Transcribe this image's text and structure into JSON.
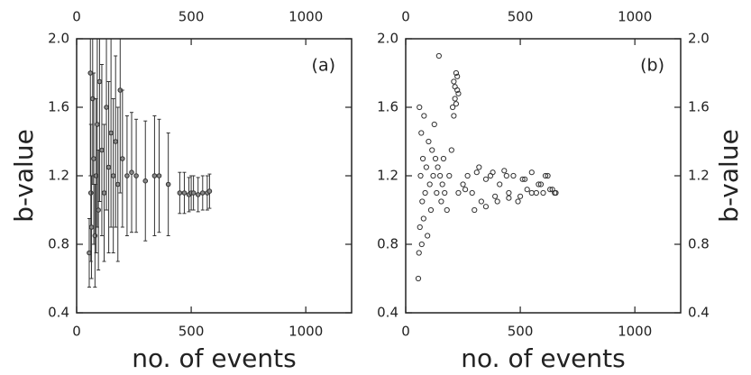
{
  "chart_data": [
    {
      "type": "errorbar",
      "annotation": "(a)",
      "xlabel": "no. of events",
      "ylabel": "b-value",
      "ylabel_side": "left",
      "ytick_label_sides": [
        "left"
      ],
      "xtick_label_sides": [
        "bottom",
        "top"
      ],
      "color": "#333333",
      "xlim": [
        0,
        1200
      ],
      "ylim": [
        0.4,
        2
      ],
      "xticks": [
        0,
        500,
        1000
      ],
      "yticks": [
        0.4,
        0.8,
        1.2,
        1.6,
        {
          "value": 2,
          "label": "2.0"
        }
      ],
      "x": [
        55,
        60,
        62,
        65,
        70,
        75,
        80,
        85,
        90,
        95,
        100,
        110,
        120,
        130,
        140,
        150,
        160,
        170,
        180,
        190,
        200,
        220,
        240,
        260,
        300,
        340,
        360,
        400,
        450,
        470,
        490,
        500,
        510,
        530,
        550,
        570,
        580
      ],
      "values": [
        0.75,
        1.8,
        1.1,
        0.9,
        1.65,
        1.3,
        0.85,
        1.2,
        1.5,
        1.0,
        1.75,
        1.35,
        1.1,
        1.6,
        1.25,
        1.45,
        1.2,
        1.4,
        1.15,
        1.7,
        1.3,
        1.2,
        1.22,
        1.2,
        1.17,
        1.2,
        1.2,
        1.15,
        1.1,
        1.1,
        1.09,
        1.1,
        1.1,
        1.09,
        1.1,
        1.1,
        1.11
      ],
      "errors": [
        0.2,
        0.6,
        0.4,
        0.3,
        0.5,
        0.5,
        0.3,
        0.45,
        0.6,
        0.35,
        0.7,
        0.5,
        0.4,
        0.6,
        0.5,
        0.55,
        0.45,
        0.5,
        0.45,
        0.6,
        0.4,
        0.35,
        0.35,
        0.33,
        0.35,
        0.35,
        0.33,
        0.3,
        0.12,
        0.12,
        0.1,
        0.1,
        0.1,
        0.1,
        0.1,
        0.1,
        0.1
      ]
    },
    {
      "type": "scatter",
      "annotation": "(b)",
      "xlabel": "no. of events",
      "ylabel": "b-value",
      "ylabel_side": "right",
      "ytick_label_sides": [
        "left",
        "right"
      ],
      "xtick_label_sides": [
        "bottom",
        "top"
      ],
      "color": "#333333",
      "xlim": [
        0,
        1200
      ],
      "ylim": [
        0.4,
        2
      ],
      "xticks": [
        0,
        500,
        1000
      ],
      "yticks": [
        0.4,
        0.8,
        1.2,
        1.6,
        {
          "value": 2,
          "label": "2.0"
        }
      ],
      "x": [
        55,
        58,
        60,
        62,
        65,
        68,
        70,
        72,
        75,
        78,
        80,
        85,
        90,
        95,
        100,
        105,
        110,
        115,
        120,
        125,
        130,
        135,
        140,
        145,
        150,
        155,
        160,
        165,
        170,
        180,
        190,
        200,
        205,
        210,
        215,
        220,
        225,
        210,
        215,
        220,
        225,
        230,
        230,
        250,
        270,
        290,
        310,
        330,
        350,
        370,
        390,
        410,
        430,
        450,
        470,
        490,
        510,
        530,
        550,
        570,
        590,
        610,
        630,
        650,
        300,
        350,
        400,
        450,
        500,
        550,
        600,
        640,
        260,
        320,
        380,
        440,
        520,
        580,
        620,
        655
      ],
      "values": [
        0.6,
        0.75,
        1.6,
        0.9,
        1.2,
        1.45,
        0.8,
        1.05,
        1.3,
        0.95,
        1.55,
        1.1,
        1.25,
        0.85,
        1.4,
        1.15,
        1.0,
        1.35,
        1.2,
        1.5,
        1.3,
        1.1,
        1.25,
        1.9,
        1.2,
        1.05,
        1.15,
        1.3,
        1.1,
        1.0,
        1.2,
        1.35,
        1.6,
        1.75,
        1.65,
        1.8,
        1.7,
        1.55,
        1.72,
        1.62,
        1.78,
        1.68,
        1.1,
        1.15,
        1.2,
        1.1,
        1.22,
        1.05,
        1.18,
        1.2,
        1.08,
        1.15,
        1.23,
        1.1,
        1.2,
        1.05,
        1.18,
        1.12,
        1.22,
        1.1,
        1.15,
        1.2,
        1.12,
        1.1,
        1.0,
        1.02,
        1.05,
        1.07,
        1.08,
        1.1,
        1.1,
        1.12,
        1.12,
        1.25,
        1.22,
        1.2,
        1.18,
        1.15,
        1.2,
        1.1
      ]
    }
  ]
}
